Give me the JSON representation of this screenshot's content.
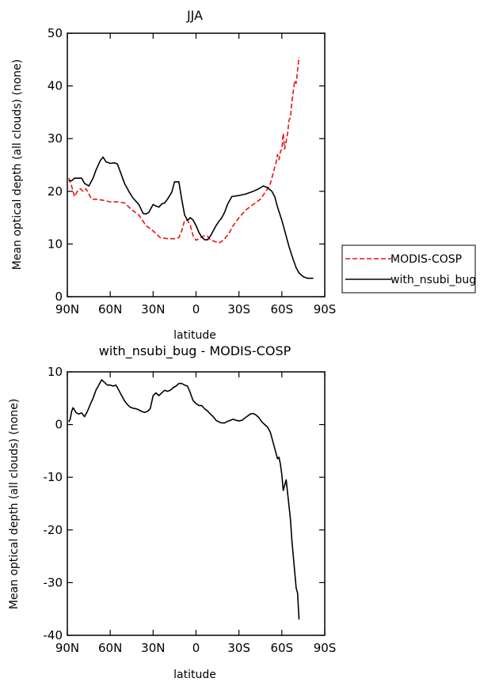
{
  "chart_data": [
    {
      "type": "line",
      "title": "JJA",
      "xlabel": "latitude",
      "ylabel": "Mean optical depth (all clouds) (none)",
      "xlim": [
        -90,
        90
      ],
      "ylim": [
        0,
        50
      ],
      "xticks": [
        -90,
        -60,
        -30,
        0,
        30,
        60,
        90
      ],
      "xtick_labels": [
        "90N",
        "60N",
        "30N",
        "0",
        "30S",
        "60S",
        "90S"
      ],
      "yticks": [
        0,
        10,
        20,
        30,
        40,
        50
      ],
      "ytick_labels": [
        "0",
        "10",
        "20",
        "30",
        "40",
        "50"
      ],
      "legend": {
        "position": "right",
        "entries": [
          "MODIS-COSP",
          "with_nsubi_bug"
        ]
      },
      "series": [
        {
          "name": "MODIS-COSP",
          "color": "#e8140f",
          "dash": "dashed",
          "x": [
            -89,
            -87,
            -85,
            -83,
            -81,
            -79,
            -77,
            -75,
            -73,
            -70,
            -65,
            -60,
            -55,
            -50,
            -45,
            -40,
            -35,
            -30,
            -25,
            -22,
            -20,
            -18,
            -15,
            -12,
            -10,
            -8,
            -6,
            -4,
            -2,
            0,
            2,
            5,
            8,
            10,
            13,
            16,
            18,
            20,
            23,
            26,
            30,
            35,
            40,
            45,
            50,
            52,
            54,
            56,
            57,
            58,
            59,
            60,
            61,
            62,
            63,
            64,
            65,
            66,
            67,
            68,
            69,
            70,
            71,
            72
          ],
          "values": [
            22.5,
            21,
            19,
            20,
            20.5,
            20,
            20.5,
            19.5,
            18.5,
            18.5,
            18.3,
            18,
            18,
            17.8,
            16.5,
            15.5,
            13.5,
            12.5,
            11.2,
            11.1,
            11,
            11,
            11,
            11.2,
            12.5,
            14.5,
            14.5,
            13.5,
            11.5,
            10.7,
            11,
            11.5,
            11.5,
            10.8,
            10.5,
            10.2,
            10.5,
            11,
            12,
            13.5,
            15,
            16.5,
            17.5,
            18.5,
            20.5,
            21.5,
            23.5,
            25.5,
            27,
            26,
            27.5,
            28,
            31,
            28,
            29.5,
            31,
            33.5,
            34,
            37,
            39,
            41,
            40.5,
            43,
            45.5
          ]
        },
        {
          "name": "with_nsubi_bug",
          "color": "#000000",
          "dash": "solid",
          "x": [
            -89,
            -87,
            -85,
            -82,
            -80,
            -78,
            -75,
            -72,
            -70,
            -67,
            -65,
            -63,
            -60,
            -57,
            -55,
            -52,
            -50,
            -47,
            -44,
            -40,
            -37,
            -35,
            -33,
            -30,
            -28,
            -26,
            -24,
            -22,
            -20,
            -17,
            -15,
            -12,
            -10,
            -8,
            -6,
            -4,
            -2,
            0,
            2,
            4,
            6,
            8,
            10,
            12,
            14,
            16,
            18,
            20,
            22,
            25,
            30,
            35,
            40,
            44,
            47,
            50,
            53,
            55,
            57,
            60,
            63,
            65,
            68,
            70,
            72,
            75,
            78,
            80,
            82
          ],
          "values": [
            22,
            22,
            22.5,
            22.5,
            22.5,
            21.5,
            21,
            22.5,
            24,
            25.8,
            26.5,
            25.6,
            25.3,
            25.4,
            25.2,
            23,
            21.5,
            20,
            18.7,
            17.5,
            15.8,
            15.7,
            16,
            17.5,
            17.2,
            17,
            17.6,
            17.8,
            18.5,
            19.8,
            21.8,
            21.8,
            18.5,
            15.5,
            14.5,
            15,
            14.5,
            13.5,
            12.2,
            11.3,
            10.8,
            10.8,
            11.5,
            12.5,
            13.5,
            14.3,
            15,
            16,
            17.5,
            19,
            19.2,
            19.5,
            20,
            20.5,
            21,
            20.7,
            20,
            19,
            17,
            14.5,
            11.5,
            9.5,
            7,
            5.5,
            4.5,
            3.8,
            3.5,
            3.5,
            3.5
          ]
        }
      ]
    },
    {
      "type": "line",
      "title": "with_nsubi_bug - MODIS-COSP",
      "xlabel": "latitude",
      "ylabel": "Mean optical depth (all clouds) (none)",
      "xlim": [
        -90,
        90
      ],
      "ylim": [
        -40,
        10
      ],
      "xticks": [
        -90,
        -60,
        -30,
        0,
        30,
        60,
        90
      ],
      "xtick_labels": [
        "90N",
        "60N",
        "30N",
        "0",
        "30S",
        "60S",
        "90S"
      ],
      "yticks": [
        -40,
        -30,
        -20,
        -10,
        0,
        10
      ],
      "ytick_labels": [
        "-40",
        "-30",
        "-20",
        "-10",
        "0",
        "10"
      ],
      "series": [
        {
          "color": "#000000",
          "dash": "solid",
          "x": [
            -89,
            -88,
            -87,
            -86,
            -85,
            -84,
            -82,
            -80,
            -78,
            -76,
            -74,
            -72,
            -70,
            -68,
            -66,
            -64,
            -62,
            -60,
            -58,
            -56,
            -54,
            -52,
            -50,
            -48,
            -46,
            -44,
            -42,
            -40,
            -38,
            -36,
            -34,
            -32,
            -30,
            -28,
            -26,
            -24,
            -22,
            -20,
            -18,
            -16,
            -14,
            -12,
            -10,
            -8,
            -6,
            -4,
            -2,
            0,
            2,
            4,
            6,
            8,
            10,
            12,
            14,
            16,
            18,
            20,
            22,
            24,
            26,
            28,
            30,
            32,
            34,
            36,
            38,
            40,
            42,
            44,
            46,
            48,
            50,
            52,
            54,
            56,
            57,
            58,
            59,
            60,
            61,
            62,
            63,
            64,
            65,
            66,
            67,
            68,
            69,
            70,
            71,
            72
          ],
          "values": [
            0.5,
            1,
            2.5,
            3.2,
            2.8,
            2.3,
            2,
            2.2,
            1.5,
            2.5,
            3.8,
            5,
            6.5,
            7.5,
            8.5,
            8,
            7.5,
            7.5,
            7.3,
            7.5,
            6.5,
            5.5,
            4.5,
            3.8,
            3.3,
            3.1,
            3,
            2.8,
            2.5,
            2.3,
            2.5,
            3,
            5.5,
            6,
            5.5,
            6,
            6.5,
            6.3,
            6.5,
            7,
            7.3,
            7.8,
            7.8,
            7.5,
            7.3,
            6,
            4.5,
            4,
            3.6,
            3.6,
            3,
            2.6,
            2,
            1.5,
            0.8,
            0.5,
            0.3,
            0.3,
            0.6,
            0.8,
            1,
            0.8,
            0.7,
            0.8,
            1.2,
            1.6,
            2,
            2.1,
            1.8,
            1.3,
            0.5,
            0,
            -0.5,
            -1.5,
            -3.5,
            -5.5,
            -6.5,
            -6.2,
            -7.5,
            -9.5,
            -12.5,
            -11.5,
            -10.5,
            -13,
            -15.5,
            -18,
            -22,
            -25,
            -28,
            -31,
            -32,
            -37
          ]
        }
      ]
    }
  ]
}
